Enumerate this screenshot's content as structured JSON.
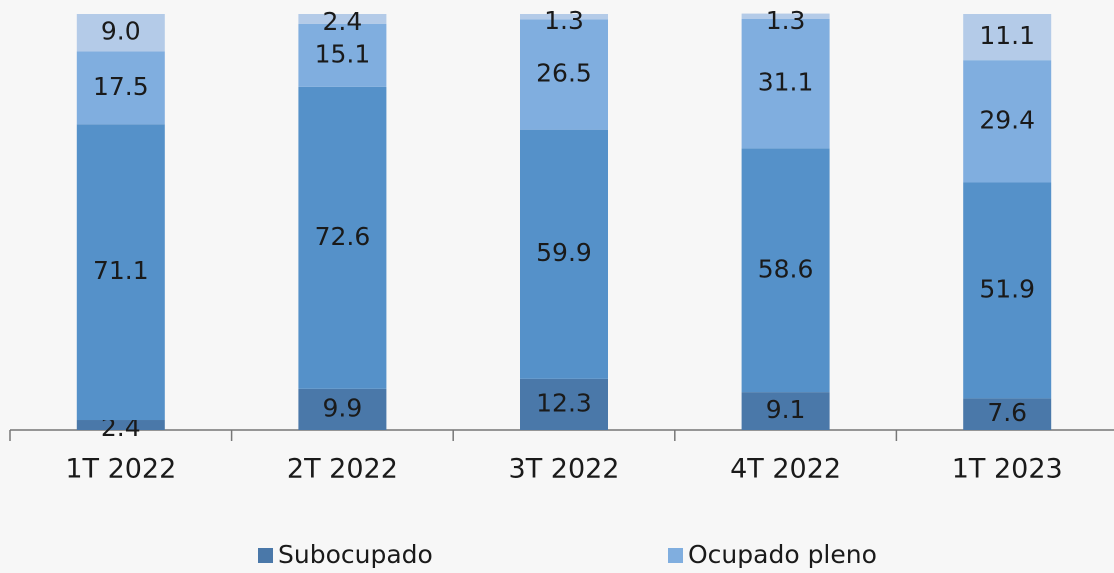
{
  "chart_data": {
    "type": "stacked_bar",
    "categories": [
      "1T 2022",
      "2T 2022",
      "3T 2022",
      "4T 2022",
      "1T 2023"
    ],
    "series": [
      {
        "name": "Subocupado",
        "color": "#4a78a9",
        "values": [
          2.4,
          9.9,
          12.3,
          9.1,
          7.6
        ],
        "value_labels": [
          "2.4",
          "9.9",
          "12.3",
          "9.1",
          "7.6"
        ]
      },
      {
        "color": "#5591c9",
        "values": [
          71.1,
          72.6,
          59.9,
          58.6,
          51.9
        ],
        "value_labels": [
          "71.1",
          "72.6",
          "59.9",
          "58.6",
          "51.9"
        ]
      },
      {
        "name": "Ocupado pleno",
        "color": "#80aedf",
        "values": [
          17.5,
          15.1,
          26.5,
          31.1,
          29.4
        ],
        "value_labels": [
          "17.5",
          "15.1",
          "26.5",
          "31.1",
          "29.4"
        ]
      },
      {
        "color": "#b4cbe8",
        "values": [
          9.0,
          2.4,
          1.3,
          1.3,
          11.1
        ],
        "value_labels": [
          "9.0",
          "2.4",
          "1.3",
          "1.3",
          "11.1"
        ]
      }
    ],
    "ylim": [
      0,
      100
    ]
  }
}
